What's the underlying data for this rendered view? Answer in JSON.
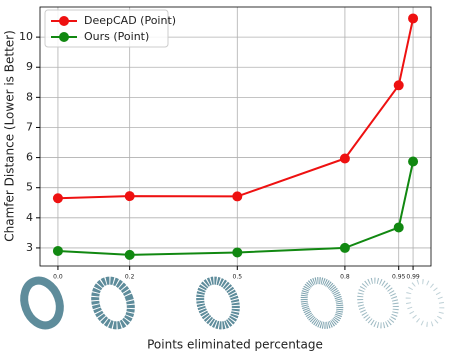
{
  "chart_data": {
    "type": "line",
    "xlabel": "Points eliminated percentage",
    "ylabel": "Chamfer Distance (Lower is Better)",
    "x": [
      0,
      0.2,
      0.5,
      0.8,
      0.95,
      0.99
    ],
    "series": [
      {
        "name": "DeepCAD (Point)",
        "color": "#ee1111",
        "values": [
          4.65,
          4.72,
          4.71,
          5.97,
          8.4,
          10.62
        ]
      },
      {
        "name": "Ours (Point)",
        "color": "#118811",
        "values": [
          2.9,
          2.77,
          2.85,
          3.0,
          3.68,
          5.87
        ]
      }
    ],
    "xlim": [
      -0.05,
      1.04
    ],
    "ylim": [
      2.4,
      11.0
    ],
    "xticks": [
      {
        "value": 0,
        "label": "0.0"
      },
      0.2,
      0.5,
      0.8,
      0.95,
      0.99
    ],
    "yticks": [
      3,
      4,
      5,
      6,
      7,
      8,
      9,
      10
    ],
    "grid": true,
    "legend": "upper left"
  }
}
